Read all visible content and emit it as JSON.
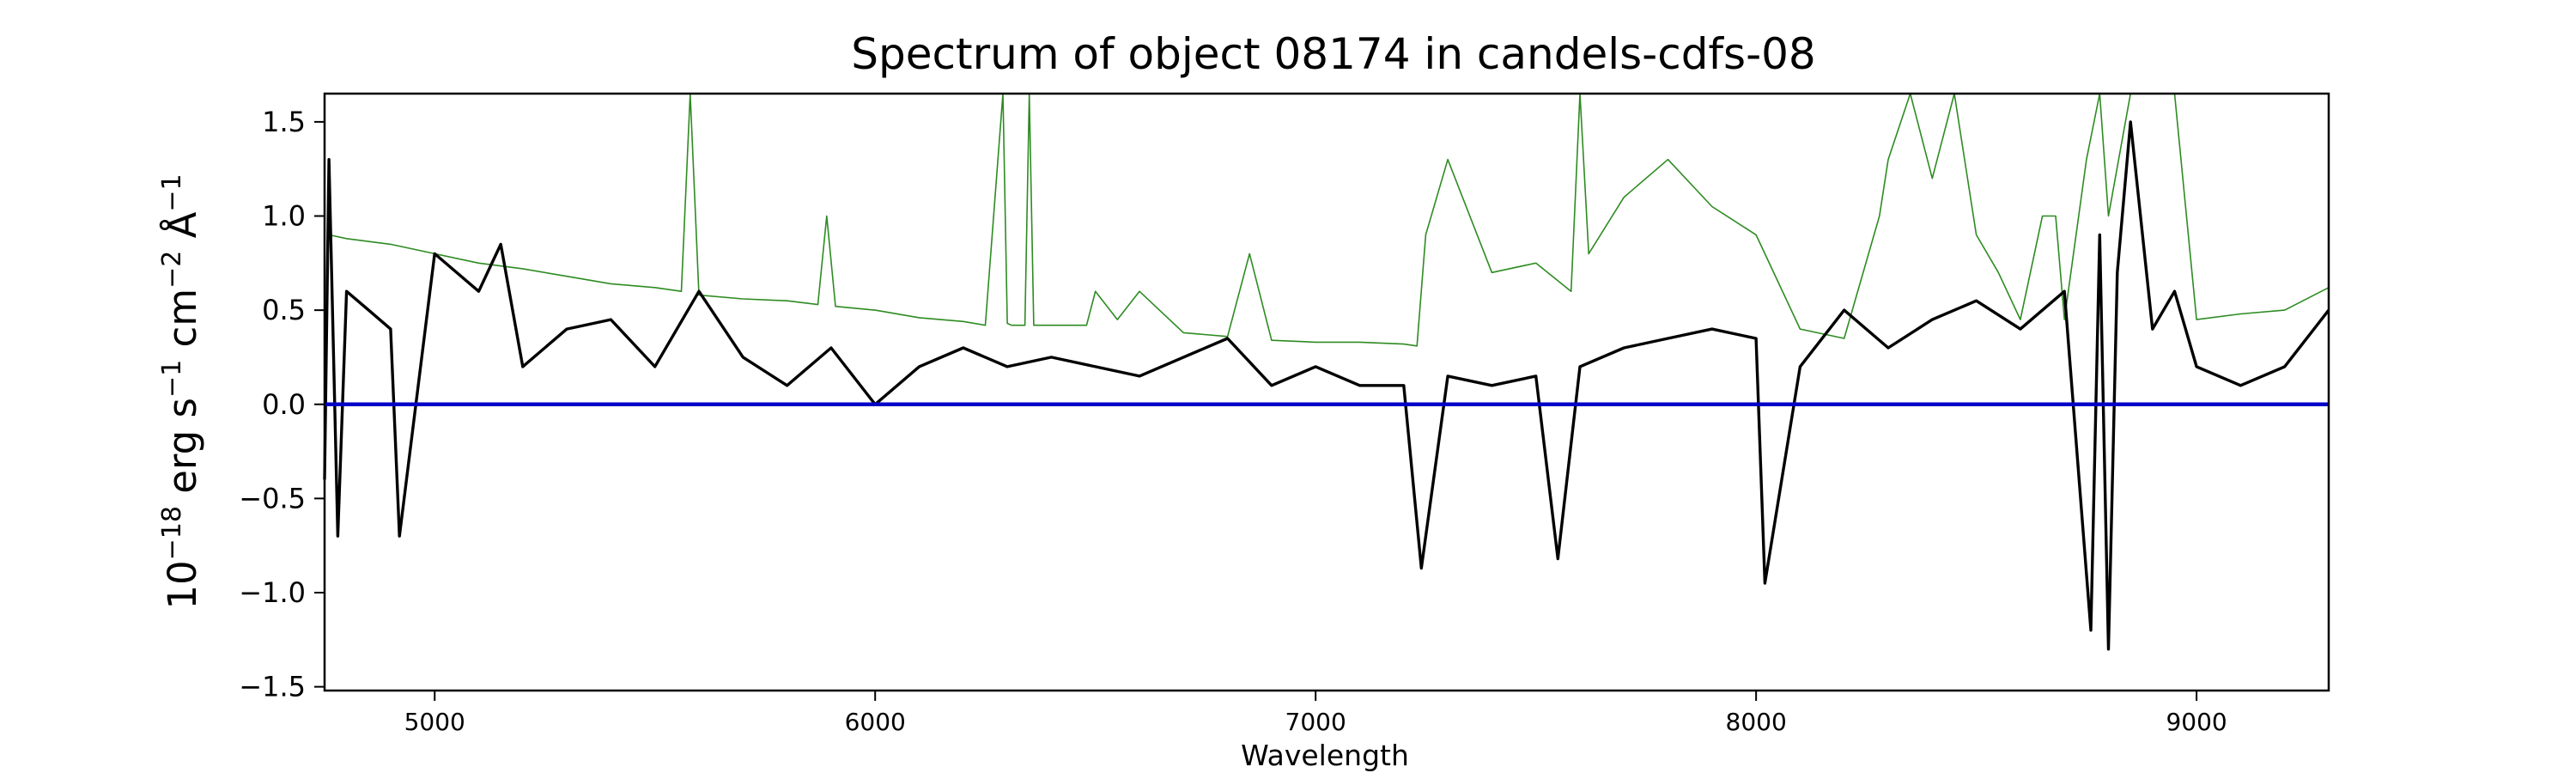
{
  "chart_data": {
    "type": "line",
    "title": "Spectrum of object 08174 in candels-cdfs-08",
    "xlabel": "Wavelength",
    "ylabel": "10−18 erg s−1 cm−2 Å−1",
    "xlim": [
      4750,
      9300
    ],
    "ylim": [
      -1.52,
      1.65
    ],
    "xticks": [
      5000,
      6000,
      7000,
      8000,
      9000
    ],
    "yticks": [
      -1.5,
      -1.0,
      -0.5,
      0.0,
      0.5,
      1.0,
      1.5
    ],
    "grid": false,
    "legend": "none",
    "series": [
      {
        "color": "#2e8b22",
        "style": "thin line",
        "x": [
          4760,
          4800,
          4900,
          5000,
          5100,
          5200,
          5300,
          5400,
          5500,
          5560,
          5580,
          5600,
          5700,
          5800,
          5870,
          5890,
          5910,
          6000,
          6100,
          6200,
          6250,
          6290,
          6300,
          6310,
          6340,
          6350,
          6360,
          6400,
          6480,
          6500,
          6550,
          6600,
          6700,
          6800,
          6850,
          6900,
          7000,
          7100,
          7200,
          7230,
          7250,
          7300,
          7400,
          7500,
          7580,
          7600,
          7620,
          7700,
          7800,
          7900,
          8000,
          8100,
          8200,
          8280,
          8300,
          8350,
          8400,
          8450,
          8500,
          8550,
          8600,
          8650,
          8680,
          8700,
          8750,
          8780,
          8800,
          8850,
          8900,
          8950,
          9000,
          9100,
          9200,
          9300
        ],
        "y": [
          0.9,
          0.88,
          0.85,
          0.8,
          0.75,
          0.72,
          0.68,
          0.64,
          0.62,
          0.6,
          1.65,
          0.58,
          0.56,
          0.55,
          0.53,
          1.0,
          0.52,
          0.5,
          0.46,
          0.44,
          0.42,
          1.65,
          0.43,
          0.42,
          0.42,
          1.65,
          0.42,
          0.42,
          0.42,
          0.6,
          0.45,
          0.6,
          0.38,
          0.36,
          0.8,
          0.34,
          0.33,
          0.33,
          0.32,
          0.31,
          0.9,
          1.3,
          0.7,
          0.75,
          0.6,
          1.65,
          0.8,
          1.1,
          1.3,
          1.05,
          0.9,
          0.4,
          0.35,
          1.0,
          1.3,
          1.65,
          1.2,
          1.65,
          0.9,
          0.7,
          0.45,
          1.0,
          1.0,
          0.45,
          1.3,
          1.65,
          1.0,
          1.65,
          1.65,
          1.65,
          0.45,
          0.48,
          0.5,
          0.62
        ]
      },
      {
        "color": "#000000",
        "style": "thick line",
        "x": [
          4750,
          4760,
          4780,
          4800,
          4850,
          4900,
          4920,
          5000,
          5100,
          5150,
          5200,
          5300,
          5400,
          5500,
          5600,
          5700,
          5800,
          5900,
          6000,
          6100,
          6200,
          6300,
          6400,
          6500,
          6600,
          6700,
          6800,
          6900,
          7000,
          7100,
          7200,
          7240,
          7300,
          7400,
          7500,
          7550,
          7600,
          7700,
          7800,
          7900,
          8000,
          8020,
          8100,
          8200,
          8300,
          8400,
          8500,
          8600,
          8700,
          8760,
          8780,
          8800,
          8820,
          8850,
          8900,
          8950,
          9000,
          9100,
          9200,
          9300
        ],
        "y": [
          -0.4,
          1.3,
          -0.7,
          0.6,
          0.5,
          0.4,
          -0.7,
          0.8,
          0.6,
          0.85,
          0.2,
          0.4,
          0.45,
          0.2,
          0.6,
          0.25,
          0.1,
          0.3,
          0.0,
          0.2,
          0.3,
          0.2,
          0.25,
          0.2,
          0.15,
          0.25,
          0.35,
          0.1,
          0.2,
          0.1,
          0.1,
          -0.87,
          0.15,
          0.1,
          0.15,
          -0.82,
          0.2,
          0.3,
          0.35,
          0.4,
          0.35,
          -0.95,
          0.2,
          0.5,
          0.3,
          0.45,
          0.55,
          0.4,
          0.6,
          -1.2,
          0.9,
          -1.3,
          0.7,
          1.5,
          0.4,
          0.6,
          0.2,
          0.1,
          0.2,
          0.5
        ]
      },
      {
        "color": "#0000c8",
        "style": "flat line",
        "x": [
          4750,
          9300
        ],
        "y": [
          0.0,
          0.0
        ]
      }
    ]
  }
}
